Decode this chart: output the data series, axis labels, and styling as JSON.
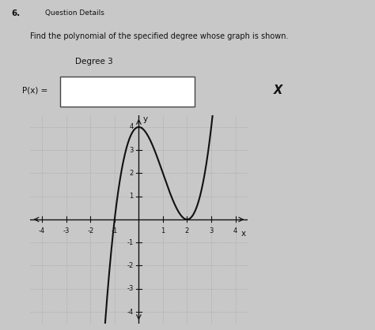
{
  "title_number": "6.",
  "header": "Question Details",
  "instruction": "Find the polynomial of the specified degree whose graph is shown.",
  "degree_label": "Degree 3",
  "px_label": "P(x) =",
  "x_button": "X",
  "x_axis_label": "x",
  "y_axis_label": "y",
  "xlim": [
    -4.5,
    4.5
  ],
  "ylim": [
    -4.5,
    4.5
  ],
  "xticks": [
    -4,
    -3,
    -2,
    -1,
    1,
    2,
    3,
    4
  ],
  "yticks": [
    -4,
    -3,
    -2,
    -1,
    1,
    2,
    3,
    4
  ],
  "background_color": "#c8c8c8",
  "paper_color": "#dcdcdc",
  "grid_color": "#aaaaaa",
  "curve_color": "#111111",
  "polynomial_scale": 2.0,
  "box_color": "#ffffff",
  "box_border": "#444444",
  "text_color": "#111111",
  "header_fontsize": 6.5,
  "instruction_fontsize": 7,
  "label_fontsize": 7.5,
  "tick_fontsize": 6
}
